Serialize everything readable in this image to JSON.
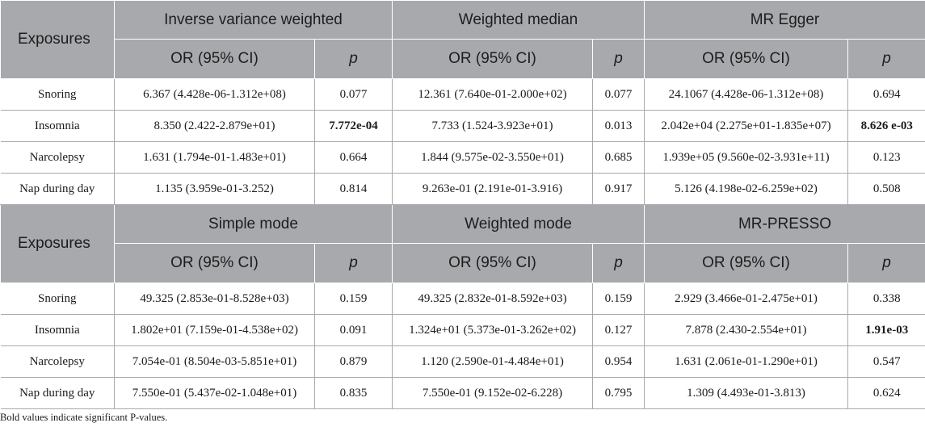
{
  "headers": {
    "exposures": "Exposures",
    "or_ci": "OR (95% CI)",
    "p": "p"
  },
  "block1": {
    "methods": [
      "Inverse variance weighted",
      "Weighted median",
      "MR Egger"
    ],
    "rows": [
      {
        "exposure": "Snoring",
        "cells": [
          {
            "or": "6.367 (4.428e-06-1.312e+08)",
            "p": "0.077",
            "p_bold": false
          },
          {
            "or": "12.361 (7.640e-01-2.000e+02)",
            "p": "0.077",
            "p_bold": false
          },
          {
            "or": "24.1067 (4.428e-06-1.312e+08)",
            "p": "0.694",
            "p_bold": false
          }
        ]
      },
      {
        "exposure": "Insomnia",
        "cells": [
          {
            "or": "8.350 (2.422-2.879e+01)",
            "p": "7.772e-04",
            "p_bold": true
          },
          {
            "or": "7.733 (1.524-3.923e+01)",
            "p": "0.013",
            "p_bold": false
          },
          {
            "or": "2.042e+04 (2.275e+01-1.835e+07)",
            "p": "8.626 e-03",
            "p_bold": true
          }
        ]
      },
      {
        "exposure": "Narcolepsy",
        "cells": [
          {
            "or": "1.631 (1.794e-01-1.483e+01)",
            "p": "0.664",
            "p_bold": false
          },
          {
            "or": "1.844 (9.575e-02-3.550e+01)",
            "p": "0.685",
            "p_bold": false
          },
          {
            "or": "1.939e+05 (9.560e-02-3.931e+11)",
            "p": "0.123",
            "p_bold": false
          }
        ]
      },
      {
        "exposure": "Nap during day",
        "cells": [
          {
            "or": "1.135 (3.959e-01-3.252)",
            "p": "0.814",
            "p_bold": false
          },
          {
            "or": "9.263e-01 (2.191e-01-3.916)",
            "p": "0.917",
            "p_bold": false
          },
          {
            "or": "5.126 (4.198e-02-6.259e+02)",
            "p": "0.508",
            "p_bold": false
          }
        ]
      }
    ]
  },
  "block2": {
    "methods": [
      "Simple mode",
      "Weighted mode",
      "MR-PRESSO"
    ],
    "rows": [
      {
        "exposure": "Snoring",
        "cells": [
          {
            "or": "49.325 (2.853e-01-8.528e+03)",
            "p": "0.159",
            "p_bold": false
          },
          {
            "or": "49.325 (2.832e-01-8.592e+03)",
            "p": "0.159",
            "p_bold": false
          },
          {
            "or": "2.929 (3.466e-01-2.475e+01)",
            "p": "0.338",
            "p_bold": false
          }
        ]
      },
      {
        "exposure": "Insomnia",
        "cells": [
          {
            "or": "1.802e+01 (7.159e-01-4.538e+02)",
            "p": "0.091",
            "p_bold": false
          },
          {
            "or": "1.324e+01 (5.373e-01-3.262e+02)",
            "p": "0.127",
            "p_bold": false
          },
          {
            "or": "7.878 (2.430-2.554e+01)",
            "p": "1.91e-03",
            "p_bold": true
          }
        ]
      },
      {
        "exposure": "Narcolepsy",
        "cells": [
          {
            "or": "7.054e-01 (8.504e-03-5.851e+01)",
            "p": "0.879",
            "p_bold": false
          },
          {
            "or": "1.120 (2.590e-01-4.484e+01)",
            "p": "0.954",
            "p_bold": false
          },
          {
            "or": "1.631 (2.061e-01-1.290e+01)",
            "p": "0.547",
            "p_bold": false
          }
        ]
      },
      {
        "exposure": "Nap during day",
        "cells": [
          {
            "or": "7.550e-01 (5.437e-02-1.048e+01)",
            "p": "0.835",
            "p_bold": false
          },
          {
            "or": "7.550e-01 (9.152e-02-6.228)",
            "p": "0.795",
            "p_bold": false
          },
          {
            "or": "1.309 (4.493e-01-3.813)",
            "p": "0.624",
            "p_bold": false
          }
        ]
      }
    ]
  },
  "footnote": "Bold values indicate significant P-values."
}
